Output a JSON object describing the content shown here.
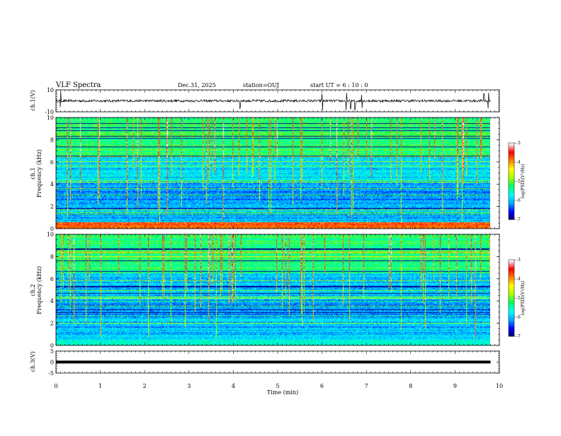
{
  "header": {
    "title": "VLF Spectra",
    "date": "Dec.31, 2025",
    "station": "station=OUJ",
    "start": "start UT =  6 : 10 : 0"
  },
  "colors": {
    "waveform": "#000000",
    "colormap": [
      "#000060",
      "#0000ff",
      "#00aaff",
      "#00ffff",
      "#00ff60",
      "#aaff00",
      "#ffff00",
      "#ff8000",
      "#ff0000",
      "#ffffff"
    ]
  },
  "chart_data": [
    {
      "type": "line",
      "id": "ch1-waveform",
      "ylabel": "ch.1(V)",
      "ylim": [
        -10,
        10
      ],
      "yticks": [
        10,
        -10
      ],
      "xlim": [
        0,
        10
      ],
      "description_series": [
        {
          "name": "baseline",
          "value": 0
        },
        {
          "name": "spikes_t_min",
          "values": [
            0.1,
            4.15,
            6.0,
            6.55,
            6.65,
            6.75,
            6.9,
            9.65,
            9.75
          ]
        }
      ]
    },
    {
      "type": "heatmap",
      "id": "ch1-spectrogram",
      "ylabel": "Frequency (kHz)",
      "channel_label": "ch.1",
      "xlim": [
        0,
        10
      ],
      "ylim": [
        0,
        10
      ],
      "yticks": [
        0,
        2,
        4,
        6,
        8,
        10
      ],
      "xdata_max": 9.8,
      "colorbar": {
        "label": "log(PSD)(V²/Hz)",
        "ticks": [
          -3,
          -4,
          -5,
          -6,
          -7
        ],
        "range": [
          -7,
          -3
        ]
      }
    },
    {
      "type": "heatmap",
      "id": "ch2-spectrogram",
      "ylabel": "Frequency (kHz)",
      "channel_label": "ch.2",
      "xlim": [
        0,
        10
      ],
      "ylim": [
        0,
        10
      ],
      "yticks": [
        0,
        2,
        4,
        6,
        8,
        10
      ],
      "xdata_max": 9.8,
      "colorbar": {
        "label": "log(PSD)(V²/Hz)",
        "ticks": [
          -3,
          -4,
          -5,
          -6,
          -7
        ],
        "range": [
          -7,
          -3
        ]
      }
    },
    {
      "type": "line",
      "id": "ch3-waveform",
      "ylabel": "ch.3(V)",
      "ylim": [
        -5,
        5
      ],
      "yticks": [
        5,
        0,
        -5
      ],
      "xlim": [
        0,
        10
      ],
      "series": [
        {
          "name": "ch3",
          "x": [
            0,
            9.8
          ],
          "y": [
            0,
            0
          ]
        }
      ]
    }
  ],
  "xaxis": {
    "label": "Time (min)",
    "ticks": [
      "0",
      "1",
      "2",
      "3",
      "4",
      "5",
      "6",
      "7",
      "8",
      "9",
      "10"
    ]
  }
}
